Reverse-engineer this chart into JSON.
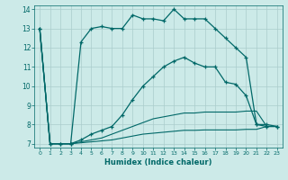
{
  "xlabel": "Humidex (Indice chaleur)",
  "xlim": [
    -0.5,
    23.5
  ],
  "ylim": [
    6.8,
    14.2
  ],
  "yticks": [
    7,
    8,
    9,
    10,
    11,
    12,
    13,
    14
  ],
  "xticks": [
    0,
    1,
    2,
    3,
    4,
    5,
    6,
    7,
    8,
    9,
    10,
    11,
    12,
    13,
    14,
    15,
    16,
    17,
    18,
    19,
    20,
    21,
    22,
    23
  ],
  "bg_color": "#cceae8",
  "grid_color": "#aacccc",
  "line_color": "#006868",
  "line1_x": [
    0,
    1,
    2,
    3,
    4,
    5,
    6,
    7,
    8,
    9,
    10,
    11,
    12,
    13,
    14,
    15,
    16,
    17,
    18,
    19,
    20,
    21,
    22,
    23
  ],
  "line1_y": [
    13,
    7,
    7,
    7,
    12.3,
    13.0,
    13.1,
    13.0,
    13.0,
    13.7,
    13.5,
    13.5,
    13.4,
    14.0,
    13.5,
    13.5,
    13.5,
    13.0,
    12.5,
    12.0,
    11.5,
    8.0,
    8.0,
    7.9
  ],
  "line2_x": [
    0,
    1,
    2,
    3,
    4,
    5,
    6,
    7,
    8,
    9,
    10,
    11,
    12,
    13,
    14,
    15,
    16,
    17,
    18,
    19,
    20,
    21,
    22,
    23
  ],
  "line2_y": [
    13,
    7,
    7,
    7,
    7.2,
    7.5,
    7.7,
    7.9,
    8.5,
    9.3,
    10.0,
    10.5,
    11.0,
    11.3,
    11.5,
    11.2,
    11.0,
    11.0,
    10.2,
    10.1,
    9.5,
    8.0,
    7.9,
    7.9
  ],
  "line3_x": [
    0,
    1,
    2,
    3,
    4,
    5,
    6,
    7,
    8,
    9,
    10,
    11,
    12,
    13,
    14,
    15,
    16,
    17,
    18,
    19,
    20,
    21,
    22,
    23
  ],
  "line3_y": [
    13,
    7,
    7,
    7,
    7.1,
    7.2,
    7.3,
    7.5,
    7.7,
    7.9,
    8.1,
    8.3,
    8.4,
    8.5,
    8.6,
    8.6,
    8.65,
    8.65,
    8.65,
    8.65,
    8.7,
    8.7,
    7.9,
    7.9
  ],
  "line4_x": [
    0,
    1,
    2,
    3,
    4,
    5,
    6,
    7,
    8,
    9,
    10,
    11,
    12,
    13,
    14,
    15,
    16,
    17,
    18,
    19,
    20,
    21,
    22,
    23
  ],
  "line4_y": [
    13,
    7,
    7,
    7,
    7.05,
    7.1,
    7.15,
    7.2,
    7.3,
    7.4,
    7.5,
    7.55,
    7.6,
    7.65,
    7.7,
    7.7,
    7.72,
    7.72,
    7.72,
    7.72,
    7.75,
    7.75,
    7.9,
    7.9
  ]
}
